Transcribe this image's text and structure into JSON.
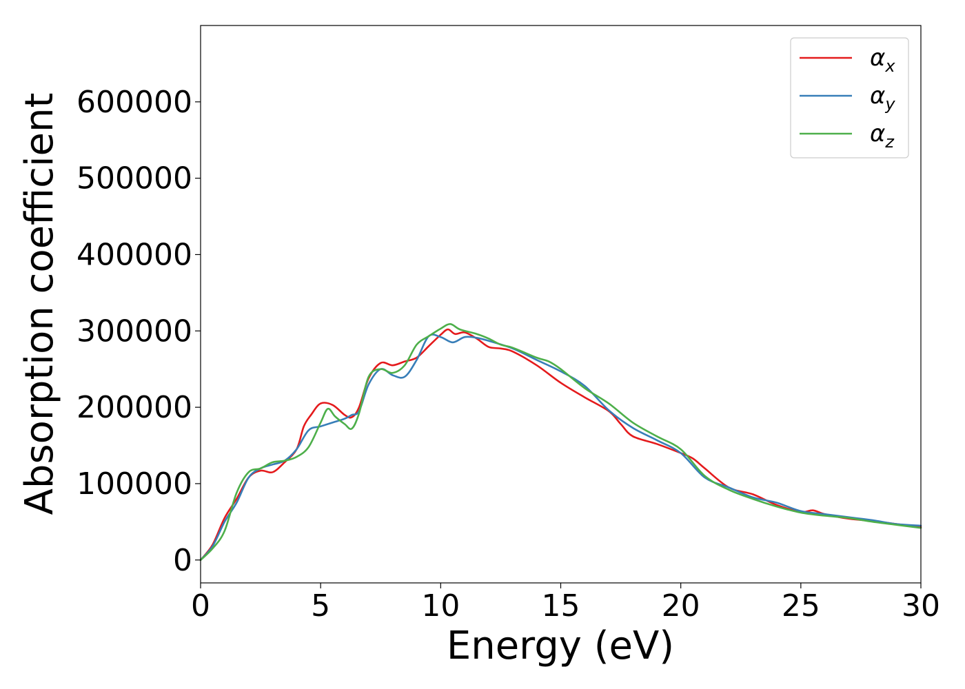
{
  "chart_data": {
    "type": "line",
    "xlabel": "Energy (eV)",
    "ylabel": "Absorption coefficient",
    "xlim": [
      0,
      30
    ],
    "ylim": [
      -30000,
      700000
    ],
    "xticks": [
      0,
      5,
      10,
      15,
      20,
      25,
      30
    ],
    "xtick_labels": [
      "0",
      "5",
      "10",
      "15",
      "20",
      "25",
      "30"
    ],
    "yticks": [
      0,
      100000,
      200000,
      300000,
      400000,
      500000,
      600000
    ],
    "ytick_labels": [
      "0",
      "100000",
      "200000",
      "300000",
      "400000",
      "500000",
      "600000"
    ],
    "grid": false,
    "legend_position": "top-right",
    "series": [
      {
        "name": "α",
        "subscript": "x",
        "color": "#e41a1c",
        "x": [
          0,
          0.5,
          1,
          1.5,
          2,
          2.5,
          3,
          3.5,
          4,
          4.3,
          4.6,
          5,
          5.5,
          6,
          6.3,
          6.6,
          7,
          7.5,
          8,
          8.5,
          9,
          9.5,
          10,
          10.3,
          10.6,
          11,
          11.5,
          12,
          12.5,
          13,
          14,
          15,
          16,
          17,
          17.5,
          18,
          19,
          20,
          20.5,
          21,
          22,
          23,
          24,
          25,
          25.5,
          26,
          27,
          28,
          29,
          30
        ],
        "y": [
          0,
          20000,
          55000,
          80000,
          108000,
          117000,
          115000,
          128000,
          145000,
          175000,
          190000,
          205000,
          203000,
          190000,
          187000,
          200000,
          238000,
          258000,
          255000,
          260000,
          265000,
          280000,
          295000,
          302000,
          296000,
          298000,
          290000,
          279000,
          277000,
          273000,
          255000,
          232000,
          213000,
          195000,
          178000,
          162000,
          152000,
          140000,
          133000,
          120000,
          95000,
          86000,
          72000,
          63000,
          65000,
          60000,
          54000,
          51000,
          47000,
          43000
        ]
      },
      {
        "name": "α",
        "subscript": "y",
        "color": "#377eb8",
        "x": [
          0,
          0.5,
          1,
          1.5,
          2,
          2.5,
          3,
          3.5,
          4,
          4.5,
          5,
          5.5,
          6,
          6.3,
          6.6,
          7,
          7.5,
          8,
          8.5,
          9,
          9.5,
          10,
          10.5,
          11,
          11.5,
          12,
          13,
          14,
          15,
          16,
          17,
          18,
          19,
          20,
          21,
          22,
          23,
          24,
          25,
          26,
          27,
          28,
          29,
          30
        ],
        "y": [
          0,
          18000,
          50000,
          75000,
          108000,
          120000,
          125000,
          130000,
          145000,
          170000,
          175000,
          180000,
          185000,
          190000,
          195000,
          230000,
          250000,
          242000,
          240000,
          262000,
          293000,
          292000,
          285000,
          292000,
          291000,
          287000,
          277000,
          262000,
          247000,
          228000,
          196000,
          173000,
          157000,
          140000,
          108000,
          95000,
          82000,
          75000,
          64000,
          60000,
          56000,
          52000,
          47000,
          45000
        ]
      },
      {
        "name": "α",
        "subscript": "z",
        "color": "#4daf4a",
        "x": [
          0,
          0.5,
          1,
          1.5,
          2,
          2.5,
          3,
          3.5,
          4,
          4.5,
          5,
          5.3,
          5.6,
          6,
          6.3,
          6.6,
          7,
          7.5,
          8,
          8.5,
          9,
          9.5,
          10,
          10.4,
          10.8,
          11.5,
          12,
          12.5,
          13,
          14,
          14.5,
          15,
          16,
          17,
          18,
          19,
          20,
          21,
          22,
          23,
          24,
          25,
          26,
          27,
          28,
          29,
          30
        ],
        "y": [
          0,
          15000,
          38000,
          88000,
          115000,
          120000,
          128000,
          130000,
          135000,
          148000,
          180000,
          198000,
          188000,
          178000,
          172000,
          192000,
          240000,
          250000,
          245000,
          255000,
          282000,
          293000,
          303000,
          309000,
          302000,
          296000,
          290000,
          282000,
          278000,
          265000,
          260000,
          250000,
          225000,
          205000,
          180000,
          162000,
          145000,
          110000,
          92000,
          80000,
          70000,
          62000,
          58000,
          55000,
          50000,
          46000,
          42000
        ]
      }
    ]
  }
}
